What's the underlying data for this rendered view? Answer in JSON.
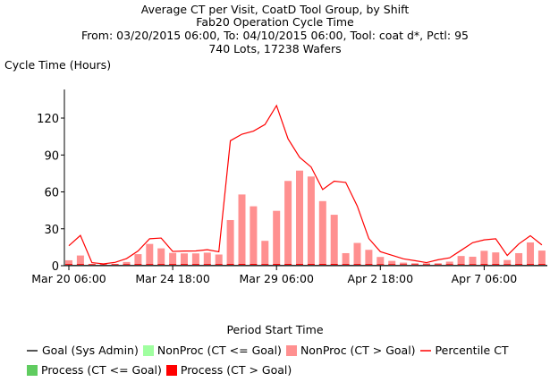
{
  "chart_data": {
    "type": "bar",
    "title_lines": [
      "Average CT per Visit, CoatD Tool Group, by Shift",
      "Fab20 Operation Cycle Time",
      "From: 03/20/2015 06:00, To: 04/10/2015 06:00, Tool: coat d*, Pctl: 95",
      "740 Lots, 17238 Wafers"
    ],
    "ylabel": "Cycle Time (Hours)",
    "xlabel": "Period Start Time",
    "ylim": [
      0,
      146
    ],
    "yticks": [
      0,
      30,
      60,
      90,
      120
    ],
    "xtick_labels": [
      {
        "label": "Mar 20 06:00",
        "period": 1
      },
      {
        "label": "Mar 24 18:00",
        "period": 10
      },
      {
        "label": "Mar 29 06:00",
        "period": 19
      },
      {
        "label": "Apr 2 18:00",
        "period": 28
      },
      {
        "label": "Apr 7 06:00",
        "period": 37
      }
    ],
    "period_count": 42,
    "series": [
      {
        "name": "NonProc (CT > Goal)",
        "kind": "bar",
        "color": "#ff9090",
        "values": [
          4.4,
          8.3,
          1.5,
          1,
          1.5,
          3,
          9.4,
          17.7,
          14.1,
          10.4,
          10,
          10,
          10.6,
          9.1,
          37.1,
          57.9,
          48.3,
          20.2,
          44.6,
          68.9,
          77.3,
          72.5,
          52.5,
          41.4,
          10.2,
          18.5,
          12.9,
          7.1,
          3.9,
          2.5,
          2,
          2,
          2,
          3.3,
          7.9,
          7.3,
          12.1,
          10.8,
          4.6,
          10.2,
          18.9,
          12.3
        ]
      },
      {
        "name": "Process (CT > Goal)",
        "kind": "bar",
        "color": "#ff0000",
        "values": [
          0.6,
          0.6,
          0.4,
          0.4,
          0.4,
          0.5,
          0.6,
          0.6,
          0.6,
          0.6,
          0.6,
          0.6,
          0.6,
          0.6,
          0.7,
          0.7,
          0.7,
          0.6,
          0.7,
          0.7,
          0.7,
          0.7,
          0.7,
          0.7,
          0.6,
          0.6,
          0.6,
          0.5,
          0.5,
          0.4,
          0.4,
          0.4,
          0.4,
          0.5,
          0.5,
          0.5,
          0.6,
          0.6,
          0.5,
          0.6,
          0.6,
          0.6
        ]
      },
      {
        "name": "Percentile CT",
        "kind": "line",
        "color": "#ff0000",
        "values": [
          16.2,
          24.6,
          2.5,
          1.5,
          2.7,
          5.8,
          12,
          21.9,
          22.5,
          11.6,
          11.9,
          12,
          13,
          11.3,
          101.6,
          106.9,
          109.4,
          114.8,
          130.2,
          103.1,
          88.1,
          80.2,
          61.9,
          68.7,
          67.7,
          48.5,
          22.1,
          11.4,
          8.5,
          5.6,
          4.1,
          2.5,
          4.8,
          6.4,
          12.5,
          18.7,
          21,
          21.9,
          8.3,
          17.7,
          24.4,
          16.9
        ]
      },
      {
        "name": "Goal (Sys Admin)",
        "kind": "line",
        "color": "#333333",
        "values": []
      }
    ],
    "legend": [
      {
        "label": "Goal (Sys Admin)",
        "type": "line",
        "color": "#555555"
      },
      {
        "label": "NonProc (CT <= Goal)",
        "type": "box",
        "color": "#a0ffa0"
      },
      {
        "label": "NonProc (CT > Goal)",
        "type": "box",
        "color": "#ff9090"
      },
      {
        "label": "Percentile CT",
        "type": "line",
        "color": "#ff4040"
      },
      {
        "label": "Process (CT <= Goal)",
        "type": "box",
        "color": "#60cc60"
      },
      {
        "label": "Process (CT > Goal)",
        "type": "box",
        "color": "#ff0000"
      }
    ],
    "legend_position": "bottom",
    "grid": false
  }
}
